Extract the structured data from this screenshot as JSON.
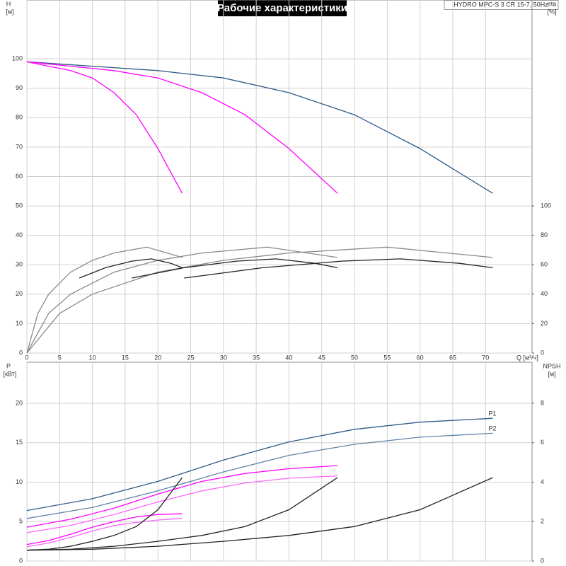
{
  "chart_data": [
    {
      "type": "line",
      "title": "Рабочие характеристики",
      "subtitle": "HYDRO MPC-S 3 CR 15-7, 50Hz",
      "ylabel": "H",
      "yunit": "[м]",
      "y2label": "eta",
      "y2unit": "[%]",
      "xlabel": "Q [м³/ч]",
      "xlim": [
        0,
        77.1
      ],
      "ylim": [
        0,
        120
      ],
      "y2lim": [
        0,
        240
      ],
      "xticks": [
        0,
        5,
        10,
        15,
        20,
        25,
        30,
        35,
        40,
        45,
        50,
        55,
        60,
        65,
        70
      ],
      "yticks": [
        0,
        10,
        20,
        30,
        40,
        50,
        60,
        70,
        80,
        90,
        100
      ],
      "y2ticks": [
        0,
        20,
        40,
        60,
        80,
        100
      ],
      "grid": true,
      "series": [
        {
          "color": "#2e5a87",
          "x": [
            0,
            10,
            20,
            30,
            40,
            50,
            60,
            71.1
          ],
          "values": [
            99,
            97.5,
            96,
            93.5,
            88.5,
            81,
            69.5,
            54.3
          ]
        },
        {
          "color": "#ff00ff",
          "x": [
            0,
            6.67,
            13.3,
            20,
            26.7,
            33.3,
            40,
            47.4
          ],
          "values": [
            99,
            97.5,
            96,
            93.5,
            88.5,
            81,
            69.5,
            54.3
          ]
        },
        {
          "color": "#ff00ff",
          "x": [
            0,
            3.33,
            6.67,
            10,
            13.3,
            16.7,
            20,
            23.7
          ],
          "values": [
            99,
            97.5,
            96,
            93.5,
            88.5,
            81,
            69.5,
            54.3
          ]
        },
        {
          "color": "#8a8a8a",
          "axis": "y2",
          "x": [
            0,
            5,
            10,
            20,
            30,
            40,
            55,
            71.1
          ],
          "values": [
            0,
            27,
            40,
            55,
            63,
            68,
            72,
            65
          ]
        },
        {
          "color": "#8a8a8a",
          "axis": "y2",
          "x": [
            0,
            3.33,
            6.67,
            13.3,
            20,
            26.7,
            36.7,
            47.4
          ],
          "values": [
            0,
            27,
            40,
            55,
            63,
            68,
            72,
            65
          ]
        },
        {
          "color": "#8a8a8a",
          "axis": "y2",
          "x": [
            0,
            1.67,
            3.33,
            6.67,
            10,
            13.3,
            18.3,
            23.7
          ],
          "values": [
            0,
            27,
            40,
            55,
            63,
            68,
            72,
            65
          ]
        },
        {
          "color": "#222222",
          "axis": "y2",
          "x": [
            8,
            12,
            16,
            19,
            22,
            23.7
          ],
          "values": [
            51,
            58,
            62.5,
            64,
            61,
            58
          ]
        },
        {
          "color": "#222222",
          "axis": "y2",
          "x": [
            16,
            24,
            32,
            38,
            44,
            47.4
          ],
          "values": [
            51,
            58,
            62.5,
            64,
            61,
            58
          ]
        },
        {
          "color": "#222222",
          "axis": "y2",
          "x": [
            24,
            36,
            48,
            57,
            66,
            71.1
          ],
          "values": [
            51,
            58,
            62.5,
            64,
            61,
            58
          ]
        }
      ]
    },
    {
      "type": "line",
      "ylabel": "P",
      "yunit": "[кВт]",
      "y2label": "NPSH",
      "y2unit": "[м]",
      "xlim": [
        0,
        77.1
      ],
      "ylim": [
        0,
        25.2
      ],
      "y2lim": [
        0,
        10.08
      ],
      "xticks": [
        0,
        5,
        10,
        15,
        20,
        25,
        30,
        35,
        40,
        45,
        50,
        55,
        60,
        65,
        70
      ],
      "yticks": [
        0,
        5,
        10,
        15,
        20
      ],
      "y2ticks": [
        0,
        2,
        4,
        6,
        8
      ],
      "grid": true,
      "series": [
        {
          "name": "P1",
          "color": "#2e5a87",
          "x": [
            0,
            10,
            20,
            30,
            40,
            50,
            60,
            71.1
          ],
          "values": [
            6.4,
            7.9,
            10.1,
            12.8,
            15.1,
            16.7,
            17.6,
            18.1
          ]
        },
        {
          "name": "P2",
          "color": "#5f84a8",
          "x": [
            0,
            10,
            20,
            30,
            40,
            50,
            60,
            71.1
          ],
          "values": [
            5.4,
            6.8,
            8.9,
            11.3,
            13.4,
            14.8,
            15.7,
            16.2
          ]
        },
        {
          "color": "#ff00ff",
          "x": [
            0,
            6.67,
            13.3,
            20,
            26.7,
            33.3,
            40,
            47.4
          ],
          "values": [
            4.3,
            5.3,
            6.7,
            8.5,
            10.1,
            11.1,
            11.7,
            12.1
          ]
        },
        {
          "color": "#ff66ff",
          "x": [
            0,
            6.67,
            13.3,
            20,
            26.7,
            33.3,
            40,
            47.4
          ],
          "values": [
            3.6,
            4.5,
            5.9,
            7.5,
            8.9,
            9.9,
            10.5,
            10.8
          ]
        },
        {
          "color": "#ff00ff",
          "x": [
            0,
            3.33,
            6.67,
            10,
            13.3,
            16.7,
            20,
            23.7
          ],
          "values": [
            2.1,
            2.6,
            3.4,
            4.3,
            5,
            5.6,
            5.9,
            6.0
          ]
        },
        {
          "color": "#ff66ff",
          "x": [
            0,
            3.33,
            6.67,
            10,
            13.3,
            16.7,
            20,
            23.7
          ],
          "values": [
            1.8,
            2.3,
            3,
            3.8,
            4.5,
            4.9,
            5.2,
            5.4
          ]
        },
        {
          "color": "#222222",
          "axis": "y2",
          "x": [
            0,
            10,
            20,
            30,
            40,
            50,
            60,
            71.1
          ],
          "values": [
            0.55,
            0.6,
            0.75,
            1.0,
            1.3,
            1.75,
            2.6,
            4.23
          ]
        },
        {
          "color": "#222222",
          "axis": "y2",
          "x": [
            0,
            6.67,
            13.3,
            20,
            26.7,
            33.3,
            40,
            47.4
          ],
          "values": [
            0.55,
            0.6,
            0.75,
            1.0,
            1.3,
            1.75,
            2.6,
            4.23
          ]
        },
        {
          "color": "#222222",
          "axis": "y2",
          "x": [
            0,
            3.33,
            6.67,
            10,
            13.3,
            16.7,
            20,
            23.7
          ],
          "values": [
            0.55,
            0.6,
            0.75,
            1.0,
            1.3,
            1.75,
            2.6,
            4.23
          ]
        }
      ]
    }
  ]
}
